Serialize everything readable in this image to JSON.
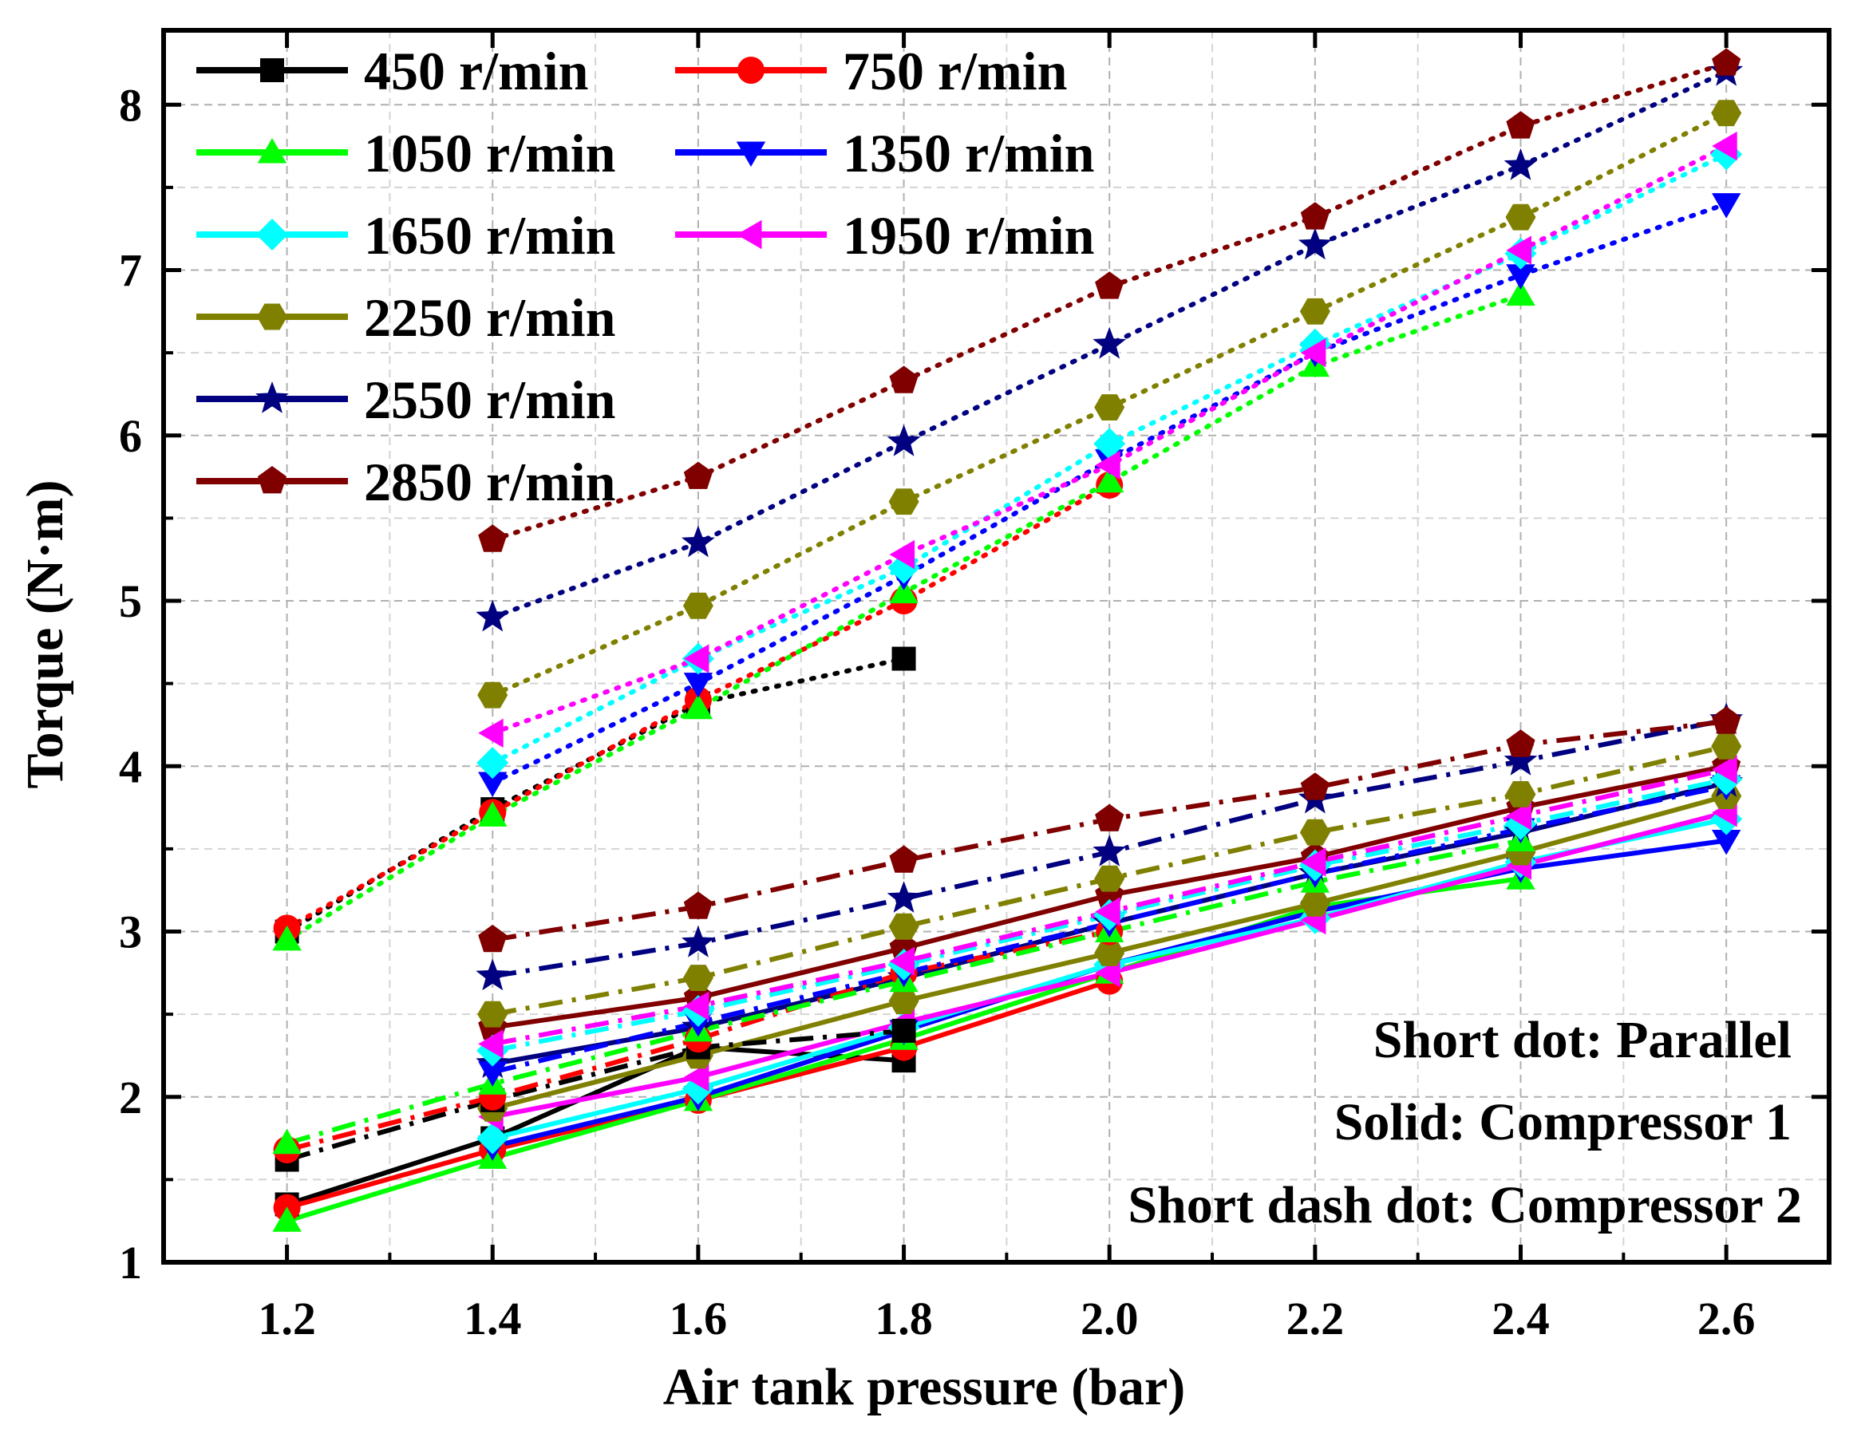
{
  "chart_data": {
    "type": "line",
    "title": "",
    "xlabel": "Air tank pressure (bar)",
    "ylabel": "Torque (N·m)",
    "xlim": [
      1.08,
      2.7
    ],
    "ylim": [
      1.0,
      8.45
    ],
    "x_ticks": [
      1.2,
      1.4,
      1.6,
      1.8,
      2.0,
      2.2,
      2.4,
      2.6
    ],
    "x_tick_labels": [
      "1.2",
      "1.4",
      "1.6",
      "1.8",
      "2.0",
      "2.2",
      "2.4",
      "2.6"
    ],
    "y_ticks": [
      1,
      2,
      3,
      4,
      5,
      6,
      7,
      8
    ],
    "y_tick_labels": [
      "1",
      "2",
      "3",
      "4",
      "5",
      "6",
      "7",
      "8"
    ],
    "grid": true,
    "legend_position": "top-left",
    "annotations": [
      "Short dot: Parallel",
      "Solid: Compressor 1",
      "Short dash dot: Compressor 2"
    ],
    "line_styles": {
      "parallel": "short dot",
      "compressor1": "solid",
      "compressor2": "short dash dot"
    },
    "series": [
      {
        "name": "450 r/min",
        "color": "#000000",
        "marker": "square",
        "parallel": {
          "x": [
            1.2,
            1.4,
            1.6,
            1.8
          ],
          "y": [
            3.0,
            3.74,
            4.38,
            4.65
          ]
        },
        "compressor1": {
          "x": [
            1.2,
            1.4,
            1.6,
            1.8
          ],
          "y": [
            1.35,
            1.75,
            2.3,
            2.22
          ]
        },
        "compressor2": {
          "x": [
            1.2,
            1.4,
            1.6,
            1.8
          ],
          "y": [
            1.62,
            1.98,
            2.3,
            2.4
          ]
        }
      },
      {
        "name": "750 r/min",
        "color": "#ff0000",
        "marker": "circle",
        "parallel": {
          "x": [
            1.2,
            1.4,
            1.6,
            1.8,
            2.0
          ],
          "y": [
            3.02,
            3.72,
            4.4,
            5.0,
            5.7
          ]
        },
        "compressor1": {
          "x": [
            1.2,
            1.4,
            1.6,
            1.8,
            2.0
          ],
          "y": [
            1.33,
            1.68,
            1.98,
            2.3,
            2.7
          ]
        },
        "compressor2": {
          "x": [
            1.2,
            1.4,
            1.6,
            1.8,
            2.0
          ],
          "y": [
            1.68,
            2.0,
            2.35,
            2.75,
            3.0
          ]
        }
      },
      {
        "name": "1050 r/min",
        "color": "#00ff00",
        "marker": "triangle-up",
        "parallel": {
          "x": [
            1.2,
            1.4,
            1.6,
            1.8,
            2.0,
            2.2,
            2.4
          ],
          "y": [
            2.95,
            3.7,
            4.35,
            5.05,
            5.72,
            6.42,
            6.85
          ]
        },
        "compressor1": {
          "x": [
            1.2,
            1.4,
            1.6,
            1.8,
            2.0,
            2.2,
            2.4
          ],
          "y": [
            1.25,
            1.63,
            1.98,
            2.35,
            2.75,
            3.15,
            3.32
          ]
        },
        "compressor2": {
          "x": [
            1.2,
            1.4,
            1.6,
            1.8,
            2.0,
            2.2,
            2.4
          ],
          "y": [
            1.72,
            2.08,
            2.4,
            2.7,
            3.0,
            3.3,
            3.55
          ]
        }
      },
      {
        "name": "1350 r/min",
        "color": "#0000ff",
        "marker": "triangle-down",
        "parallel": {
          "x": [
            1.4,
            1.6,
            1.8,
            2.0,
            2.2,
            2.4,
            2.6
          ],
          "y": [
            3.9,
            4.5,
            5.15,
            5.85,
            6.5,
            6.97,
            7.4
          ]
        },
        "compressor1": {
          "x": [
            1.4,
            1.6,
            1.8,
            2.0,
            2.2,
            2.4,
            2.6
          ],
          "y": [
            1.7,
            2.0,
            2.4,
            2.8,
            3.12,
            3.38,
            3.55
          ]
        },
        "compressor2": {
          "x": [
            1.4,
            1.6,
            1.8,
            2.0,
            2.2,
            2.4,
            2.6
          ],
          "y": [
            2.15,
            2.45,
            2.75,
            3.05,
            3.35,
            3.62,
            3.88
          ]
        }
      },
      {
        "name": "1650 r/min",
        "color": "#00ffff",
        "marker": "diamond",
        "parallel": {
          "x": [
            1.4,
            1.6,
            1.8,
            2.0,
            2.2,
            2.4,
            2.6
          ],
          "y": [
            4.02,
            4.65,
            5.2,
            5.95,
            6.55,
            7.1,
            7.7
          ]
        },
        "compressor1": {
          "x": [
            1.4,
            1.6,
            1.8,
            2.0,
            2.2,
            2.4,
            2.6
          ],
          "y": [
            1.75,
            2.05,
            2.42,
            2.8,
            3.08,
            3.42,
            3.68
          ]
        },
        "compressor2": {
          "x": [
            1.4,
            1.6,
            1.8,
            2.0,
            2.2,
            2.4,
            2.6
          ],
          "y": [
            2.28,
            2.52,
            2.8,
            3.1,
            3.4,
            3.65,
            3.92
          ]
        }
      },
      {
        "name": "1950 r/min",
        "color": "#ff00ff",
        "marker": "triangle-left",
        "parallel": {
          "x": [
            1.4,
            1.6,
            1.8,
            2.0,
            2.2,
            2.4,
            2.6
          ],
          "y": [
            4.2,
            4.65,
            5.28,
            5.82,
            6.5,
            7.12,
            7.75
          ]
        },
        "compressor1": {
          "x": [
            1.4,
            1.6,
            1.8,
            2.0,
            2.2,
            2.4,
            2.6
          ],
          "y": [
            1.88,
            2.12,
            2.45,
            2.75,
            3.07,
            3.4,
            3.72
          ]
        },
        "compressor2": {
          "x": [
            1.4,
            1.6,
            1.8,
            2.0,
            2.2,
            2.4,
            2.6
          ],
          "y": [
            2.32,
            2.55,
            2.82,
            3.12,
            3.42,
            3.7,
            3.98
          ]
        }
      },
      {
        "name": "2250 r/min",
        "color": "#808000",
        "marker": "hexagon",
        "parallel": {
          "x": [
            1.4,
            1.6,
            1.8,
            2.0,
            2.2,
            2.4,
            2.6
          ],
          "y": [
            4.43,
            4.97,
            5.6,
            6.17,
            6.75,
            7.32,
            7.95
          ]
        },
        "compressor1": {
          "x": [
            1.4,
            1.6,
            1.8,
            2.0,
            2.2,
            2.4,
            2.6
          ],
          "y": [
            1.93,
            2.25,
            2.58,
            2.87,
            3.17,
            3.48,
            3.82
          ]
        },
        "compressor2": {
          "x": [
            1.4,
            1.6,
            1.8,
            2.0,
            2.2,
            2.4,
            2.6
          ],
          "y": [
            2.5,
            2.72,
            3.03,
            3.32,
            3.6,
            3.83,
            4.12
          ]
        }
      },
      {
        "name": "2550 r/min",
        "color": "#000080",
        "marker": "star",
        "parallel": {
          "x": [
            1.4,
            1.6,
            1.8,
            2.0,
            2.2,
            2.4,
            2.6
          ],
          "y": [
            4.9,
            5.35,
            5.96,
            6.55,
            7.15,
            7.63,
            8.2
          ]
        },
        "compressor1": {
          "x": [
            1.4,
            1.6,
            1.8,
            2.0,
            2.2,
            2.4,
            2.6
          ],
          "y": [
            2.2,
            2.42,
            2.72,
            3.05,
            3.35,
            3.6,
            3.9
          ]
        },
        "compressor2": {
          "x": [
            1.4,
            1.6,
            1.8,
            2.0,
            2.2,
            2.4,
            2.6
          ],
          "y": [
            2.73,
            2.93,
            3.2,
            3.48,
            3.8,
            4.03,
            4.28
          ]
        }
      },
      {
        "name": "2850 r/min",
        "color": "#800000",
        "marker": "pentagon",
        "parallel": {
          "x": [
            1.4,
            1.6,
            1.8,
            2.0,
            2.2,
            2.4,
            2.6
          ],
          "y": [
            5.37,
            5.75,
            6.33,
            6.9,
            7.32,
            7.87,
            8.25
          ]
        },
        "compressor1": {
          "x": [
            1.4,
            1.6,
            1.8,
            2.0,
            2.2,
            2.4,
            2.6
          ],
          "y": [
            2.42,
            2.6,
            2.9,
            3.22,
            3.45,
            3.75,
            4.0
          ]
        },
        "compressor2": {
          "x": [
            1.4,
            1.6,
            1.8,
            2.0,
            2.2,
            2.4,
            2.6
          ],
          "y": [
            2.95,
            3.15,
            3.43,
            3.68,
            3.87,
            4.13,
            4.27
          ]
        }
      }
    ]
  }
}
